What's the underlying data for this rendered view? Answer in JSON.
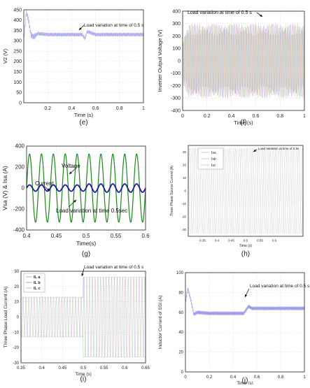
{
  "chart_data": [
    {
      "type": "line",
      "caption": "(e)",
      "ylabel": "V2 (V)",
      "xlabel": "Time (s)",
      "xlim": [
        0,
        1
      ],
      "ylim": [
        0,
        450
      ],
      "xticks": [
        0.2,
        0.4,
        0.6,
        0.8,
        1
      ],
      "yticks": [
        0,
        50,
        100,
        150,
        200,
        250,
        300,
        350,
        400,
        450
      ],
      "annotation": "Load variation at time of 0.5 s",
      "grid": true,
      "series": [
        {
          "values": {
            "x": [
              0,
              0.02,
              0.04,
              0.06,
              0.08,
              0.12,
              0.2,
              0.49,
              0.51,
              0.53,
              0.6,
              1
            ],
            "y": [
              300,
              440,
              400,
              330,
              318,
              335,
              330,
              330,
              310,
              345,
              330,
              330
            ]
          },
          "color": "#9a9ae8"
        }
      ]
    },
    {
      "type": "line",
      "caption": "(f)",
      "ylabel": "Inverter Output Voltage (V)",
      "xlabel": "Time (s)",
      "xlim": [
        0,
        1
      ],
      "ylim": [
        -400,
        400
      ],
      "xticks": [
        0,
        0.2,
        0.4,
        0.6,
        0.8,
        1
      ],
      "yticks": [
        -400,
        -300,
        -200,
        -100,
        0,
        100,
        200,
        300,
        400
      ],
      "annotation": "Load variation at time of 0.5 s",
      "grid": true,
      "series": [
        {
          "values": {
            "envelope": 300
          }
        }
      ]
    },
    {
      "type": "line",
      "caption": "(g)",
      "ylabel": "Vsa (V) & Isa (A)",
      "xlabel": "Time(s)",
      "xlim": [
        0.4,
        0.6
      ],
      "ylim": [
        -400,
        400
      ],
      "xticks": [
        0.4,
        0.45,
        0.5,
        0.55,
        0.6
      ],
      "yticks": [
        -400,
        -200,
        0,
        200,
        400
      ],
      "annotations": [
        "Voltage",
        "Current",
        "Load variation at time 0.5sec"
      ],
      "grid": true,
      "series": [
        {
          "name": "Voltage",
          "values": {
            "amplitude": 325,
            "frequency_hz": 50
          },
          "color": "#1a8a1a"
        },
        {
          "name": "Current",
          "values": {
            "amplitude_before": 30,
            "amplitude_after": 40,
            "frequency_hz": 50
          },
          "color": "#1a1aa8"
        }
      ]
    },
    {
      "type": "line",
      "caption": "(h)",
      "ylabel": "Three Phase Source Current (A)",
      "xlabel": "Time (s)",
      "xlim": [
        0.3,
        0.7
      ],
      "ylim": [
        -35,
        35
      ],
      "xticks": [
        0.35,
        0.4,
        0.45,
        0.5,
        0.55,
        0.6
      ],
      "yticks": [
        -30,
        -20,
        -10,
        0,
        10,
        20,
        30
      ],
      "annotation": "Load Variation at time of 0.5s",
      "legend": [
        "Isa",
        "Isb",
        "Isc"
      ],
      "grid": false,
      "series": [
        {
          "values": {
            "amplitude": 33
          }
        }
      ]
    },
    {
      "type": "line",
      "caption": "(i)",
      "ylabel": "Three Phase Load Current (A)",
      "xlabel": "Time (s)",
      "xlim": [
        0.35,
        0.65
      ],
      "ylim": [
        -30,
        30
      ],
      "xticks": [
        0.35,
        0.4,
        0.45,
        0.5,
        0.55,
        0.6,
        0.65
      ],
      "yticks": [
        -30,
        -20,
        -10,
        0,
        10,
        20,
        30
      ],
      "annotation": "Load variation at time of 0.5 s",
      "legend": [
        "IL a",
        "IL b",
        "IL c"
      ],
      "grid": true,
      "series": [
        {
          "values": {
            "amplitude_before": 13,
            "amplitude_after": 26
          }
        }
      ]
    },
    {
      "type": "line",
      "caption": "(j)",
      "ylabel": "Inductor Current of SSI (A)",
      "xlabel": "Time (s)",
      "xlim": [
        0,
        1
      ],
      "ylim": [
        0,
        100
      ],
      "xticks": [
        0,
        0.2,
        0.4,
        0.6,
        0.8,
        1
      ],
      "yticks": [
        0,
        20,
        40,
        60,
        80,
        100
      ],
      "annotation": "Load variation at time of 0.5 s",
      "grid": true,
      "series": [
        {
          "values": {
            "x": [
              0,
              0.02,
              0.04,
              0.07,
              0.1,
              0.2,
              0.49,
              0.53,
              0.56,
              1
            ],
            "y": [
              70,
              84,
              75,
              58,
              60,
              59,
              59,
              66,
              64,
              64
            ]
          },
          "color": "#9a9ae8"
        }
      ]
    }
  ],
  "colors": {
    "axis": "#222222",
    "grid": "#cccccc",
    "noise_a": "#c8a0d8",
    "noise_b": "#a0a0e0",
    "noise_c": "#e0c0c0"
  }
}
